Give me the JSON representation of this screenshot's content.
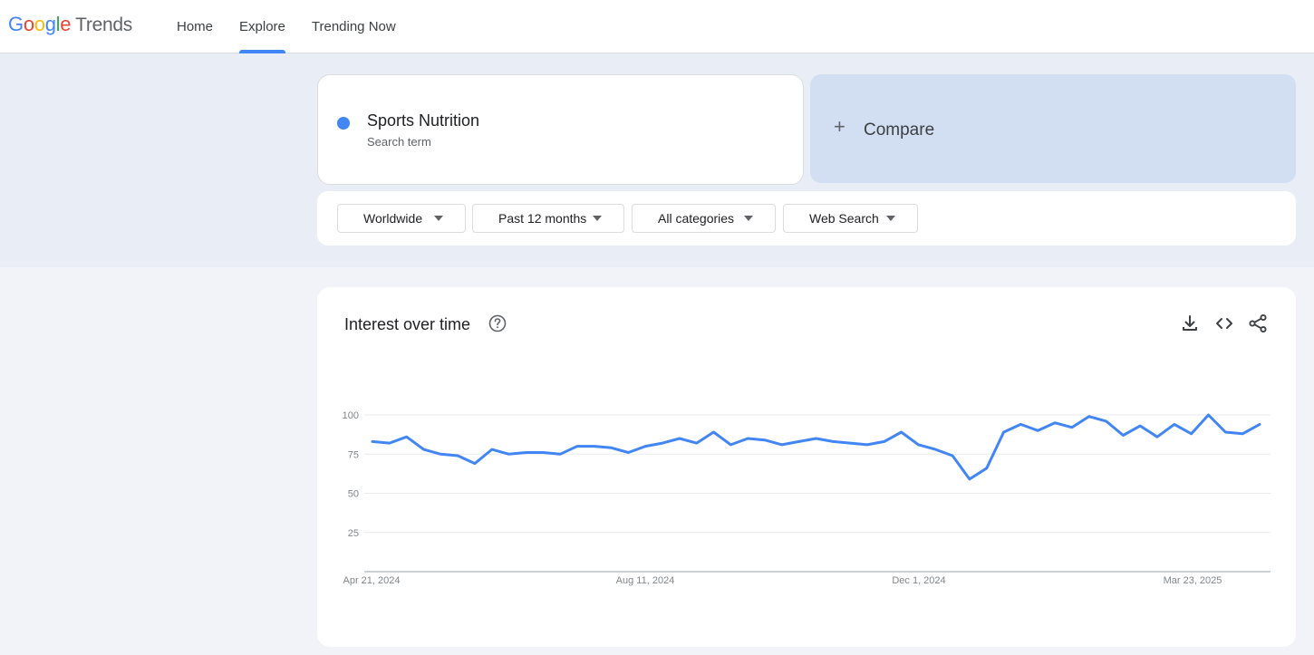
{
  "header": {
    "logo": {
      "google": [
        "G",
        "o",
        "o",
        "g",
        "l",
        "e"
      ],
      "google_colors": [
        "#4285f4",
        "#ea4335",
        "#fbbc05",
        "#4285f4",
        "#34a853",
        "#ea4335"
      ],
      "trends": "Trends"
    },
    "nav": [
      {
        "label": "Home",
        "active": false
      },
      {
        "label": "Explore",
        "active": true
      },
      {
        "label": "Trending Now",
        "active": false
      }
    ]
  },
  "search": {
    "term": "Sports Nutrition",
    "term_type": "Search term",
    "term_color": "#4285f4",
    "compare_label": "Compare"
  },
  "filters": {
    "region": "Worldwide",
    "time_range": "Past 12 months",
    "category": "All categories",
    "property": "Web Search"
  },
  "chart_card": {
    "title": "Interest over time",
    "icons": [
      "help-icon",
      "download-icon",
      "embed-icon",
      "share-icon"
    ]
  },
  "chart_data": {
    "type": "line",
    "title": "Interest over time",
    "xlabel": "",
    "ylabel": "",
    "ylim": [
      0,
      100
    ],
    "yticks": [
      25,
      50,
      75,
      100
    ],
    "x_tick_labels": [
      "Apr 21, 2024",
      "Aug 11, 2024",
      "Dec 1, 2024",
      "Mar 23, 2025"
    ],
    "grid": true,
    "series": [
      {
        "color": "#4285f4",
        "values": [
          83,
          82,
          86,
          78,
          75,
          74,
          69,
          78,
          75,
          76,
          76,
          75,
          80,
          80,
          79,
          76,
          80,
          82,
          85,
          82,
          89,
          81,
          85,
          84,
          81,
          83,
          85,
          83,
          82,
          81,
          83,
          89,
          81,
          78,
          74,
          59,
          66,
          89,
          94,
          90,
          95,
          92,
          99,
          96,
          87,
          93,
          86,
          94,
          88,
          100,
          89,
          88,
          94
        ]
      }
    ]
  }
}
